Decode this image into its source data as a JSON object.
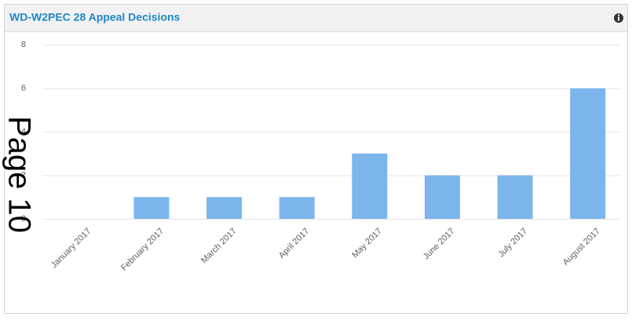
{
  "chart_data": {
    "type": "bar",
    "title": "WD-W2PEC 28 Appeal Decisions",
    "categories": [
      "January 2017",
      "February 2017",
      "March 2017",
      "April 2017",
      "May 2017",
      "June 2017",
      "July 2017",
      "August 2017"
    ],
    "values": [
      0,
      1,
      1,
      1,
      3,
      2,
      2,
      6
    ],
    "color": "#7cb5ec",
    "ylim": [
      0,
      8
    ],
    "yticks": [
      0,
      2,
      4,
      6,
      8
    ],
    "grid": true,
    "annotations": [
      "Page 10"
    ]
  }
}
